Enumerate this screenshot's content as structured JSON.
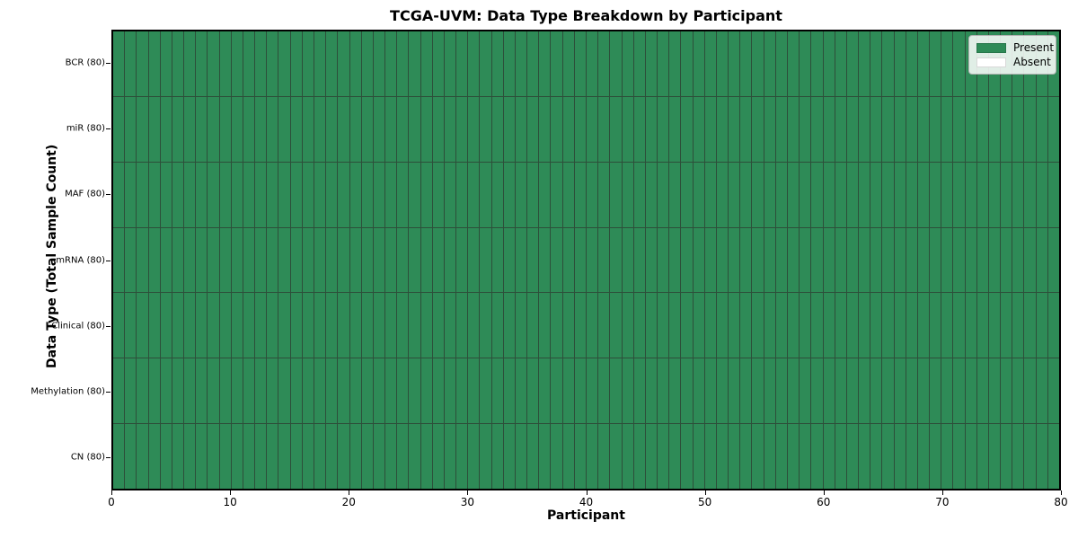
{
  "chart_data": {
    "type": "heatmap",
    "title": "TCGA-UVM: Data Type Breakdown by Participant",
    "xlabel": "Participant",
    "ylabel": "Data Type (Total Sample Count)",
    "xlim": [
      0,
      80
    ],
    "x_ticks": [
      0,
      10,
      20,
      30,
      40,
      50,
      60,
      70,
      80
    ],
    "rows": [
      "BCR (80)",
      "miR (80)",
      "MAF (80)",
      "mRNA (80)",
      "Clinical (80)",
      "Methylation (80)",
      "CN (80)"
    ],
    "n_participants": 80,
    "values": [
      [
        1,
        1,
        1,
        1,
        1,
        1,
        1,
        1,
        1,
        1,
        1,
        1,
        1,
        1,
        1,
        1,
        1,
        1,
        1,
        1,
        1,
        1,
        1,
        1,
        1,
        1,
        1,
        1,
        1,
        1,
        1,
        1,
        1,
        1,
        1,
        1,
        1,
        1,
        1,
        1,
        1,
        1,
        1,
        1,
        1,
        1,
        1,
        1,
        1,
        1,
        1,
        1,
        1,
        1,
        1,
        1,
        1,
        1,
        1,
        1,
        1,
        1,
        1,
        1,
        1,
        1,
        1,
        1,
        1,
        1,
        1,
        1,
        1,
        1,
        1,
        1,
        1,
        1,
        1,
        1
      ],
      [
        1,
        1,
        1,
        1,
        1,
        1,
        1,
        1,
        1,
        1,
        1,
        1,
        1,
        1,
        1,
        1,
        1,
        1,
        1,
        1,
        1,
        1,
        1,
        1,
        1,
        1,
        1,
        1,
        1,
        1,
        1,
        1,
        1,
        1,
        1,
        1,
        1,
        1,
        1,
        1,
        1,
        1,
        1,
        1,
        1,
        1,
        1,
        1,
        1,
        1,
        1,
        1,
        1,
        1,
        1,
        1,
        1,
        1,
        1,
        1,
        1,
        1,
        1,
        1,
        1,
        1,
        1,
        1,
        1,
        1,
        1,
        1,
        1,
        1,
        1,
        1,
        1,
        1,
        1,
        1
      ],
      [
        1,
        1,
        1,
        1,
        1,
        1,
        1,
        1,
        1,
        1,
        1,
        1,
        1,
        1,
        1,
        1,
        1,
        1,
        1,
        1,
        1,
        1,
        1,
        1,
        1,
        1,
        1,
        1,
        1,
        1,
        1,
        1,
        1,
        1,
        1,
        1,
        1,
        1,
        1,
        1,
        1,
        1,
        1,
        1,
        1,
        1,
        1,
        1,
        1,
        1,
        1,
        1,
        1,
        1,
        1,
        1,
        1,
        1,
        1,
        1,
        1,
        1,
        1,
        1,
        1,
        1,
        1,
        1,
        1,
        1,
        1,
        1,
        1,
        1,
        1,
        1,
        1,
        1,
        1,
        1
      ],
      [
        1,
        1,
        1,
        1,
        1,
        1,
        1,
        1,
        1,
        1,
        1,
        1,
        1,
        1,
        1,
        1,
        1,
        1,
        1,
        1,
        1,
        1,
        1,
        1,
        1,
        1,
        1,
        1,
        1,
        1,
        1,
        1,
        1,
        1,
        1,
        1,
        1,
        1,
        1,
        1,
        1,
        1,
        1,
        1,
        1,
        1,
        1,
        1,
        1,
        1,
        1,
        1,
        1,
        1,
        1,
        1,
        1,
        1,
        1,
        1,
        1,
        1,
        1,
        1,
        1,
        1,
        1,
        1,
        1,
        1,
        1,
        1,
        1,
        1,
        1,
        1,
        1,
        1,
        1,
        1
      ],
      [
        1,
        1,
        1,
        1,
        1,
        1,
        1,
        1,
        1,
        1,
        1,
        1,
        1,
        1,
        1,
        1,
        1,
        1,
        1,
        1,
        1,
        1,
        1,
        1,
        1,
        1,
        1,
        1,
        1,
        1,
        1,
        1,
        1,
        1,
        1,
        1,
        1,
        1,
        1,
        1,
        1,
        1,
        1,
        1,
        1,
        1,
        1,
        1,
        1,
        1,
        1,
        1,
        1,
        1,
        1,
        1,
        1,
        1,
        1,
        1,
        1,
        1,
        1,
        1,
        1,
        1,
        1,
        1,
        1,
        1,
        1,
        1,
        1,
        1,
        1,
        1,
        1,
        1,
        1,
        1
      ],
      [
        1,
        1,
        1,
        1,
        1,
        1,
        1,
        1,
        1,
        1,
        1,
        1,
        1,
        1,
        1,
        1,
        1,
        1,
        1,
        1,
        1,
        1,
        1,
        1,
        1,
        1,
        1,
        1,
        1,
        1,
        1,
        1,
        1,
        1,
        1,
        1,
        1,
        1,
        1,
        1,
        1,
        1,
        1,
        1,
        1,
        1,
        1,
        1,
        1,
        1,
        1,
        1,
        1,
        1,
        1,
        1,
        1,
        1,
        1,
        1,
        1,
        1,
        1,
        1,
        1,
        1,
        1,
        1,
        1,
        1,
        1,
        1,
        1,
        1,
        1,
        1,
        1,
        1,
        1,
        1
      ],
      [
        1,
        1,
        1,
        1,
        1,
        1,
        1,
        1,
        1,
        1,
        1,
        1,
        1,
        1,
        1,
        1,
        1,
        1,
        1,
        1,
        1,
        1,
        1,
        1,
        1,
        1,
        1,
        1,
        1,
        1,
        1,
        1,
        1,
        1,
        1,
        1,
        1,
        1,
        1,
        1,
        1,
        1,
        1,
        1,
        1,
        1,
        1,
        1,
        1,
        1,
        1,
        1,
        1,
        1,
        1,
        1,
        1,
        1,
        1,
        1,
        1,
        1,
        1,
        1,
        1,
        1,
        1,
        1,
        1,
        1,
        1,
        1,
        1,
        1,
        1,
        1,
        1,
        1,
        1,
        1
      ]
    ],
    "legend": {
      "position": "upper right",
      "entries": [
        {
          "label": "Present",
          "value": 1,
          "color": "#2e8b57"
        },
        {
          "label": "Absent",
          "value": 0,
          "color": "#ffffff"
        }
      ]
    },
    "colors": {
      "present": "#2e8b57",
      "absent": "#ffffff",
      "grid_line": "#2d4f3a",
      "spine": "#000000"
    }
  }
}
